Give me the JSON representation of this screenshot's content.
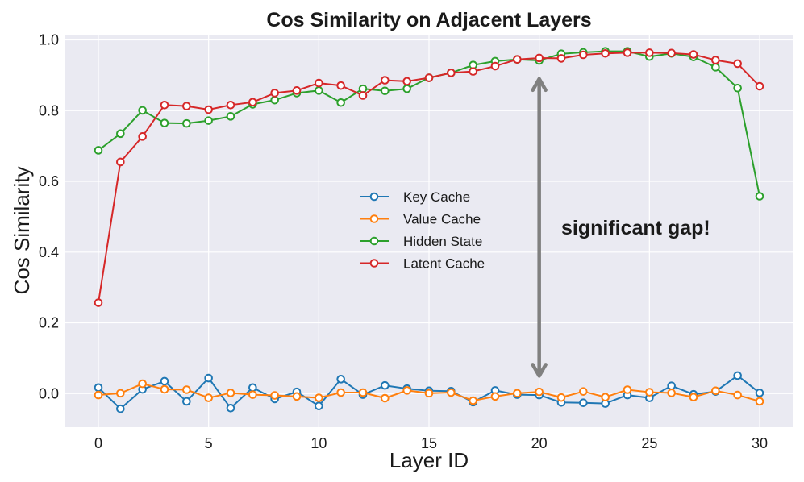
{
  "chart_data": {
    "type": "line",
    "title": "Cos Similarity on Adjacent Layers",
    "xlabel": "Layer ID",
    "ylabel": "Cos Similarity",
    "xlim": [
      -1.5,
      31.5
    ],
    "ylim": [
      -0.095,
      1.015
    ],
    "xticks": [
      0,
      5,
      10,
      15,
      20,
      25,
      30
    ],
    "xtick_labels": [
      "0",
      "5",
      "10",
      "15",
      "20",
      "25",
      "30"
    ],
    "yticks": [
      0.0,
      0.2,
      0.4,
      0.6,
      0.8,
      1.0
    ],
    "ytick_labels": [
      "0.0",
      "0.2",
      "0.4",
      "0.6",
      "0.8",
      "1.0"
    ],
    "grid": true,
    "legend_position": "center",
    "x": [
      0,
      1,
      2,
      3,
      4,
      5,
      6,
      7,
      8,
      9,
      10,
      11,
      12,
      13,
      14,
      15,
      16,
      17,
      18,
      19,
      20,
      21,
      22,
      23,
      24,
      25,
      26,
      27,
      28,
      29,
      30
    ],
    "series": [
      {
        "name": "Key Cache",
        "color": "#1f77b4",
        "values": [
          0.017,
          -0.043,
          0.012,
          0.035,
          -0.022,
          0.044,
          -0.041,
          0.017,
          -0.015,
          0.005,
          -0.035,
          0.041,
          -0.003,
          0.023,
          0.014,
          0.008,
          0.007,
          -0.024,
          0.009,
          -0.003,
          -0.004,
          -0.025,
          -0.026,
          -0.028,
          -0.004,
          -0.012,
          0.022,
          -0.002,
          0.006,
          0.051,
          0.002
        ]
      },
      {
        "name": "Value Cache",
        "color": "#ff7f0e",
        "values": [
          -0.004,
          0.001,
          0.028,
          0.012,
          0.011,
          -0.012,
          0.002,
          -0.003,
          -0.005,
          -0.008,
          -0.012,
          0.003,
          0.003,
          -0.013,
          0.009,
          0.001,
          0.003,
          -0.02,
          -0.008,
          0.001,
          0.005,
          -0.011,
          0.006,
          -0.01,
          0.011,
          0.004,
          0.002,
          -0.01,
          0.008,
          -0.004,
          -0.022
        ]
      },
      {
        "name": "Hidden State",
        "color": "#2ca02c",
        "values": [
          0.688,
          0.735,
          0.801,
          0.765,
          0.764,
          0.772,
          0.784,
          0.818,
          0.83,
          0.85,
          0.857,
          0.823,
          0.862,
          0.856,
          0.862,
          0.893,
          0.907,
          0.929,
          0.94,
          0.945,
          0.942,
          0.961,
          0.965,
          0.968,
          0.968,
          0.953,
          0.962,
          0.952,
          0.923,
          0.864,
          0.558
        ]
      },
      {
        "name": "Latent Cache",
        "color": "#d62728",
        "values": [
          0.257,
          0.655,
          0.727,
          0.816,
          0.813,
          0.803,
          0.816,
          0.824,
          0.85,
          0.857,
          0.878,
          0.871,
          0.843,
          0.886,
          0.883,
          0.893,
          0.907,
          0.911,
          0.926,
          0.945,
          0.949,
          0.948,
          0.958,
          0.962,
          0.964,
          0.964,
          0.963,
          0.959,
          0.943,
          0.933,
          0.869
        ]
      }
    ],
    "annotations": [
      {
        "type": "double-arrow",
        "x": 20,
        "y_from": 0.05,
        "y_to": 0.89,
        "color": "#808080"
      },
      {
        "type": "text",
        "text": "significant gap!",
        "x": 21,
        "y": 0.47
      }
    ]
  }
}
